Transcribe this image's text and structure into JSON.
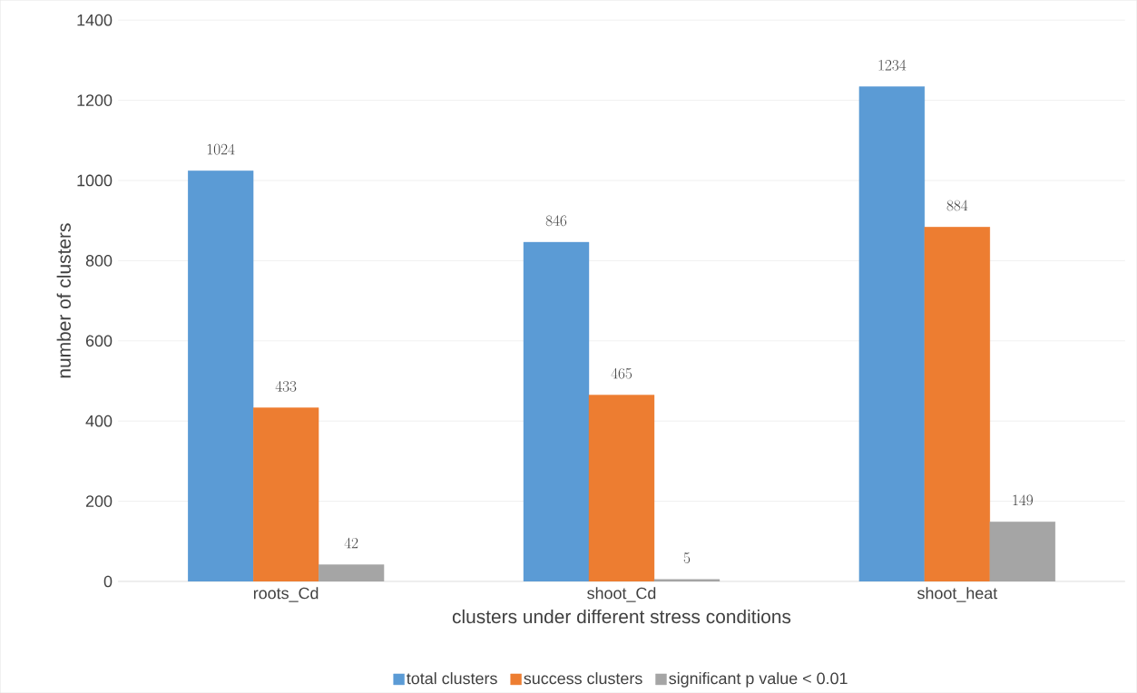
{
  "chart_data": {
    "type": "bar",
    "xlabel": "clusters under different stress conditions",
    "ylabel": "number of clusters",
    "categories": [
      "roots_Cd",
      "shoot_Cd",
      "shoot_heat"
    ],
    "series": [
      {
        "name": "total clusters",
        "color": "#5b9bd5",
        "values": [
          1024,
          846,
          1234
        ]
      },
      {
        "name": "success clusters",
        "color": "#ed7d31",
        "values": [
          433,
          465,
          884
        ]
      },
      {
        "name": "significant p value < 0.01",
        "color": "#a5a5a5",
        "values": [
          42,
          5,
          149
        ]
      }
    ],
    "ylim": [
      0,
      1400
    ],
    "yticks": [
      0,
      200,
      400,
      600,
      800,
      1000,
      1200,
      1400
    ],
    "grid": "y",
    "legend": "bottom",
    "data_labels": true
  }
}
